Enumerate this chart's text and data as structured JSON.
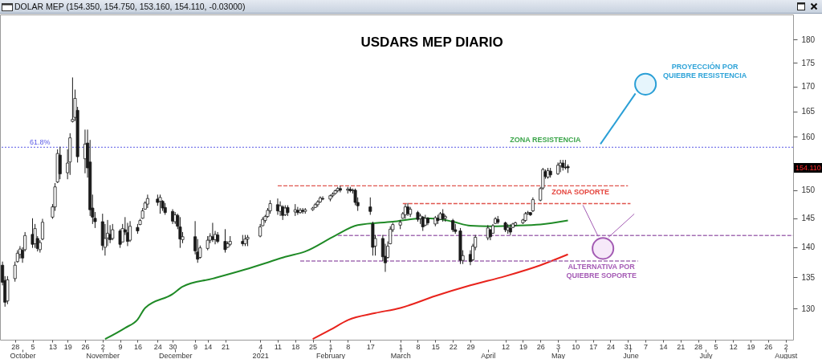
{
  "chart_data": {
    "type": "candlestick",
    "title": "USDARS MEP DIARIO",
    "color": "#1a1a1a",
    "x": [
      "2020-09-23",
      "2020-09-24",
      "2020-09-25",
      "2020-09-28",
      "2020-09-29",
      "2020-09-30",
      "2020-10-01",
      "2020-10-02",
      "2020-10-05",
      "2020-10-06",
      "2020-10-07",
      "2020-10-08",
      "2020-10-09",
      "2020-10-13",
      "2020-10-14",
      "2020-10-15",
      "2020-10-16",
      "2020-10-19",
      "2020-10-20",
      "2020-10-21",
      "2020-10-22",
      "2020-10-23",
      "2020-10-26",
      "2020-10-27",
      "2020-10-28",
      "2020-10-29",
      "2020-10-30",
      "2020-11-02",
      "2020-11-03",
      "2020-11-04",
      "2020-11-05",
      "2020-11-06",
      "2020-11-09",
      "2020-11-10",
      "2020-11-11",
      "2020-11-12",
      "2020-11-13",
      "2020-11-16",
      "2020-11-17",
      "2020-11-18",
      "2020-11-19",
      "2020-11-20",
      "2020-11-24",
      "2020-11-25",
      "2020-11-26",
      "2020-11-27",
      "2020-11-30",
      "2020-12-01",
      "2020-12-02",
      "2020-12-03",
      "2020-12-04",
      "2020-12-09",
      "2020-12-10",
      "2020-12-11",
      "2020-12-14",
      "2020-12-15",
      "2020-12-16",
      "2020-12-17",
      "2020-12-18",
      "2020-12-21",
      "2020-12-22",
      "2020-12-23",
      "2020-12-28",
      "2020-12-29",
      "2020-12-30",
      "2021-01-04",
      "2021-01-05",
      "2021-01-06",
      "2021-01-07",
      "2021-01-08",
      "2021-01-11",
      "2021-01-12",
      "2021-01-13",
      "2021-01-14",
      "2021-01-15",
      "2021-01-18",
      "2021-01-19",
      "2021-01-20",
      "2021-01-21",
      "2021-01-22",
      "2021-01-25",
      "2021-01-26",
      "2021-01-27",
      "2021-01-28",
      "2021-01-29",
      "2021-02-01",
      "2021-02-02",
      "2021-02-03",
      "2021-02-04",
      "2021-02-05",
      "2021-02-08",
      "2021-02-09",
      "2021-02-10",
      "2021-02-11",
      "2021-02-12",
      "2021-02-17",
      "2021-02-18",
      "2021-02-19",
      "2021-02-22",
      "2021-02-23",
      "2021-02-24",
      "2021-02-25",
      "2021-02-26",
      "2021-03-01",
      "2021-03-02",
      "2021-03-03",
      "2021-03-04",
      "2021-03-05",
      "2021-03-08",
      "2021-03-09",
      "2021-03-10",
      "2021-03-11",
      "2021-03-12",
      "2021-03-15",
      "2021-03-16",
      "2021-03-17",
      "2021-03-18",
      "2021-03-19",
      "2021-03-22",
      "2021-03-23",
      "2021-03-25",
      "2021-03-26",
      "2021-03-29",
      "2021-03-30",
      "2021-03-31",
      "2021-04-05",
      "2021-04-06",
      "2021-04-07",
      "2021-04-08",
      "2021-04-09",
      "2021-04-12",
      "2021-04-13",
      "2021-04-14",
      "2021-04-15",
      "2021-04-16",
      "2021-04-19",
      "2021-04-20",
      "2021-04-21",
      "2021-04-22",
      "2021-04-23",
      "2021-04-26",
      "2021-04-27",
      "2021-04-28",
      "2021-04-29",
      "2021-04-30",
      "2021-05-03",
      "2021-05-04",
      "2021-05-05",
      "2021-05-06",
      "2021-05-07"
    ],
    "ohlc": [
      [
        137.0,
        137.6,
        133.7,
        134.2
      ],
      [
        134.5,
        135.2,
        130.3,
        131.0
      ],
      [
        131.2,
        135.2,
        130.7,
        134.6
      ],
      [
        134.8,
        137.6,
        134.3,
        137.0
      ],
      [
        137.6,
        139.5,
        137.4,
        139.0
      ],
      [
        138.8,
        140.2,
        138.1,
        139.7
      ],
      [
        139.5,
        140.0,
        137.4,
        138.2
      ],
      [
        139.6,
        142.6,
        139.3,
        142.0
      ],
      [
        142.2,
        145.0,
        139.9,
        140.5
      ],
      [
        140.6,
        144.0,
        139.9,
        143.2
      ],
      [
        141.5,
        141.9,
        139.3,
        139.8
      ],
      [
        139.6,
        141.2,
        139.1,
        140.8
      ],
      [
        141.4,
        144.9,
        141.2,
        144.3
      ],
      [
        145.2,
        147.5,
        144.9,
        147.0
      ],
      [
        147.0,
        151.3,
        146.3,
        150.6
      ],
      [
        151.5,
        157.6,
        151.3,
        156.8
      ],
      [
        156.5,
        158.1,
        152.0,
        153.0
      ],
      [
        153.2,
        157.6,
        152.0,
        155.0
      ],
      [
        155.2,
        160.7,
        152.8,
        159.8
      ],
      [
        163.0,
        171.9,
        162.8,
        163.4
      ],
      [
        163.8,
        169.4,
        163.1,
        167.6
      ],
      [
        165.2,
        165.9,
        155.1,
        156.2
      ],
      [
        155.8,
        161.4,
        153.1,
        158.6
      ],
      [
        158.8,
        161.4,
        152.3,
        154.1
      ],
      [
        155.2,
        159.4,
        145.4,
        146.5
      ],
      [
        146.8,
        149.2,
        144.0,
        145.2
      ],
      [
        145.0,
        146.1,
        143.3,
        144.4
      ],
      [
        144.4,
        145.8,
        139.5,
        140.3
      ],
      [
        140.0,
        144.0,
        138.6,
        141.5
      ],
      [
        141.6,
        144.7,
        140.2,
        142.4
      ],
      [
        142.2,
        143.8,
        140.7,
        141.3
      ],
      [
        141.5,
        144.0,
        141.2,
        143.0
      ],
      [
        142.8,
        143.1,
        139.9,
        140.5
      ],
      [
        140.9,
        144.0,
        140.9,
        143.2
      ],
      [
        143.0,
        145.2,
        142.1,
        142.6
      ],
      [
        142.5,
        144.2,
        140.2,
        141.0
      ],
      [
        141.2,
        144.5,
        140.9,
        143.6
      ],
      [
        143.4,
        144.0,
        142.3,
        142.8
      ],
      [
        143.9,
        144.9,
        143.8,
        144.6
      ],
      [
        145.0,
        146.8,
        144.9,
        146.3
      ],
      [
        146.6,
        148.0,
        146.5,
        147.7
      ],
      [
        147.5,
        149.2,
        146.8,
        148.5
      ],
      [
        148.4,
        149.2,
        147.2,
        147.8
      ],
      [
        148.0,
        149.2,
        145.8,
        148.7
      ],
      [
        148.0,
        148.2,
        146.3,
        146.8
      ],
      [
        146.9,
        147.7,
        145.6,
        146.0
      ],
      [
        146.2,
        146.6,
        144.0,
        144.5
      ],
      [
        144.4,
        146.1,
        144.0,
        145.6
      ],
      [
        145.5,
        145.8,
        143.1,
        143.6
      ],
      [
        143.5,
        145.2,
        139.9,
        141.4
      ],
      [
        141.3,
        142.6,
        140.7,
        141.8
      ],
      [
        141.8,
        144.5,
        138.8,
        139.4
      ],
      [
        139.2,
        141.4,
        137.4,
        138.0
      ],
      [
        138.3,
        140.3,
        138.1,
        139.9
      ],
      [
        139.8,
        141.9,
        139.5,
        141.2
      ],
      [
        141.2,
        142.4,
        140.7,
        141.9
      ],
      [
        141.8,
        144.2,
        140.9,
        141.3
      ],
      [
        141.3,
        142.8,
        140.5,
        142.2
      ],
      [
        142.1,
        142.6,
        140.7,
        141.0
      ],
      [
        141.0,
        143.1,
        139.1,
        139.6
      ],
      [
        140.0,
        141.0,
        139.9,
        140.6
      ],
      [
        140.5,
        141.9,
        140.2,
        141.0
      ],
      [
        141.0,
        142.1,
        140.2,
        140.6
      ],
      [
        140.6,
        142.1,
        140.2,
        141.4
      ],
      [
        141.4,
        142.1,
        140.2,
        141.7
      ],
      [
        141.9,
        144.0,
        141.7,
        143.5
      ],
      [
        143.7,
        145.2,
        143.6,
        144.8
      ],
      [
        144.6,
        145.6,
        144.2,
        145.3
      ],
      [
        145.3,
        146.8,
        145.1,
        146.4
      ],
      [
        146.3,
        148.2,
        145.8,
        147.6
      ],
      [
        147.4,
        148.5,
        145.6,
        146.3
      ],
      [
        146.2,
        148.0,
        145.4,
        147.2
      ],
      [
        147.0,
        147.3,
        144.7,
        145.5
      ],
      [
        145.6,
        147.3,
        145.4,
        146.8
      ],
      [
        146.9,
        147.3,
        145.4,
        146.0
      ],
      [
        146.1,
        147.5,
        145.4,
        146.5
      ],
      [
        146.4,
        147.0,
        145.6,
        146.0
      ],
      [
        146.0,
        146.8,
        145.8,
        146.4
      ],
      [
        146.4,
        146.8,
        145.8,
        146.2
      ],
      [
        146.2,
        146.8,
        145.8,
        146.5
      ],
      [
        146.5,
        147.0,
        146.3,
        146.8
      ],
      [
        146.9,
        147.7,
        146.8,
        147.4
      ],
      [
        147.4,
        148.2,
        147.0,
        147.9
      ],
      [
        147.9,
        148.9,
        147.7,
        148.6
      ],
      [
        148.5,
        148.9,
        148.2,
        148.4
      ],
      [
        148.4,
        149.2,
        148.0,
        149.0
      ],
      [
        149.0,
        149.6,
        148.7,
        149.3
      ],
      [
        149.4,
        150.1,
        149.2,
        149.9
      ],
      [
        149.9,
        150.6,
        149.6,
        150.3
      ],
      [
        150.3,
        150.8,
        149.6,
        150.0
      ],
      [
        150.0,
        150.6,
        149.4,
        150.2
      ],
      [
        150.2,
        150.6,
        149.6,
        149.9
      ],
      [
        149.9,
        150.3,
        149.4,
        150.0
      ],
      [
        150.0,
        150.3,
        147.3,
        147.8
      ],
      [
        147.8,
        148.7,
        146.3,
        147.2
      ],
      [
        147.0,
        148.7,
        145.6,
        146.2
      ],
      [
        144.0,
        144.4,
        138.6,
        140.0
      ],
      [
        140.2,
        142.1,
        138.6,
        141.5
      ],
      [
        141.5,
        142.1,
        137.7,
        138.4
      ],
      [
        138.5,
        140.6,
        135.9,
        137.4
      ],
      [
        138.3,
        141.0,
        138.1,
        140.2
      ],
      [
        140.6,
        143.6,
        140.5,
        143.1
      ],
      [
        143.0,
        144.2,
        142.6,
        143.9
      ],
      [
        143.8,
        144.7,
        143.1,
        144.3
      ],
      [
        145.0,
        146.1,
        144.9,
        145.8
      ],
      [
        145.6,
        147.5,
        144.9,
        147.0
      ],
      [
        147.0,
        147.7,
        145.4,
        145.8
      ],
      [
        145.7,
        147.0,
        145.2,
        146.6
      ],
      [
        146.0,
        146.3,
        144.4,
        144.8
      ],
      [
        144.9,
        145.8,
        144.0,
        145.4
      ],
      [
        145.2,
        145.4,
        142.8,
        143.5
      ],
      [
        143.8,
        145.6,
        143.6,
        145.0
      ],
      [
        145.0,
        145.2,
        143.8,
        144.2
      ],
      [
        144.0,
        145.4,
        143.6,
        145.1
      ],
      [
        145.0,
        145.6,
        144.0,
        144.6
      ],
      [
        144.8,
        146.1,
        144.7,
        145.8
      ],
      [
        145.8,
        146.6,
        144.4,
        144.9
      ],
      [
        145.0,
        145.6,
        144.4,
        145.3
      ],
      [
        144.6,
        144.9,
        142.6,
        143.0
      ],
      [
        143.0,
        144.0,
        142.3,
        142.7
      ],
      [
        142.8,
        143.3,
        137.2,
        137.8
      ],
      [
        137.8,
        139.5,
        137.2,
        138.6
      ],
      [
        138.8,
        139.5,
        137.0,
        137.6
      ],
      [
        137.9,
        140.6,
        137.7,
        140.2
      ],
      [
        140.0,
        142.1,
        139.5,
        141.7
      ],
      [
        141.6,
        143.8,
        141.2,
        143.3
      ],
      [
        143.0,
        143.1,
        141.2,
        141.8
      ],
      [
        142.4,
        144.0,
        142.3,
        143.7
      ],
      [
        144.1,
        145.2,
        144.0,
        144.9
      ],
      [
        144.8,
        145.4,
        144.0,
        144.3
      ],
      [
        144.2,
        144.4,
        142.6,
        143.0
      ],
      [
        142.9,
        144.0,
        142.3,
        143.4
      ],
      [
        143.3,
        144.0,
        142.1,
        142.6
      ],
      [
        143.4,
        144.2,
        143.3,
        144.0
      ],
      [
        143.8,
        144.4,
        143.6,
        144.2
      ],
      [
        144.2,
        144.9,
        144.0,
        144.7
      ],
      [
        144.6,
        146.1,
        144.4,
        145.8
      ],
      [
        145.8,
        146.3,
        145.6,
        146.0
      ],
      [
        146.0,
        146.1,
        145.4,
        145.6
      ],
      [
        146.3,
        148.7,
        146.1,
        148.3
      ],
      [
        148.2,
        150.6,
        148.0,
        150.3
      ],
      [
        150.4,
        154.1,
        150.1,
        153.8
      ],
      [
        153.4,
        153.8,
        152.1,
        152.5
      ],
      [
        152.4,
        154.1,
        152.1,
        153.6
      ],
      [
        153.5,
        154.1,
        152.3,
        152.8
      ],
      [
        153.0,
        155.1,
        152.8,
        154.6
      ],
      [
        154.5,
        155.6,
        153.3,
        155.0
      ],
      [
        155.0,
        155.6,
        153.6,
        154.2
      ],
      [
        154.2,
        155.6,
        153.8,
        154.14
      ],
      [
        154.35,
        154.75,
        153.16,
        154.11
      ]
    ],
    "series": [
      {
        "type": "line",
        "color": "#1f8a26",
        "x": [
          "2020-11-03",
          "2020-11-11",
          "2020-11-16",
          "2020-11-19",
          "2020-11-30",
          "2020-12-04",
          "2020-12-16",
          "2020-12-29",
          "2021-01-08",
          "2021-01-14",
          "2021-01-22",
          "2021-02-03",
          "2021-02-12",
          "2021-02-26",
          "2021-03-10",
          "2021-03-16",
          "2021-03-22",
          "2021-03-29",
          "2021-04-05",
          "2021-04-15",
          "2021-04-26",
          "2021-05-07"
        ],
        "values": [
          125.3,
          127.0,
          128.3,
          130.1,
          132.3,
          133.5,
          134.8,
          136.3,
          137.6,
          138.4,
          139.3,
          142.0,
          143.8,
          144.4,
          145.0,
          144.9,
          144.4,
          143.7,
          143.6,
          143.7,
          143.9,
          144.6
        ]
      },
      {
        "type": "line",
        "color": "#e8231c",
        "x": [
          "2021-01-25",
          "2021-02-01",
          "2021-02-08",
          "2021-02-19",
          "2021-03-01",
          "2021-03-15",
          "2021-03-29",
          "2021-04-12",
          "2021-04-26",
          "2021-05-07"
        ],
        "values": [
          125.3,
          126.7,
          128.2,
          129.3,
          130.1,
          132.0,
          133.7,
          135.2,
          137.0,
          138.8
        ]
      },
      {
        "type": "line",
        "color": "#e0554e",
        "line_style": "dashed",
        "x": [
          "2021-01-11",
          "2021-05-31"
        ],
        "values": [
          150.8,
          150.8
        ]
      },
      {
        "type": "line",
        "color": "#e0554e",
        "line_style": "dashed",
        "x": [
          "2021-03-02",
          "2021-06-01"
        ],
        "values": [
          147.6,
          147.6
        ]
      },
      {
        "type": "line",
        "color": "#a46fb4",
        "line_style": "dashed",
        "x": [
          "2021-02-04",
          "2021-08-05"
        ],
        "values": [
          142.0,
          142.0
        ]
      },
      {
        "type": "line",
        "color": "#a46fb4",
        "line_style": "dashed",
        "x": [
          "2021-01-20",
          "2021-06-04"
        ],
        "values": [
          137.7,
          137.7
        ]
      },
      {
        "type": "line",
        "color": "#2a9fd6",
        "x": [
          "2021-05-20",
          "2021-06-03"
        ],
        "values": [
          158.6,
          168.6
        ]
      }
    ],
    "xlim": [
      "2020-09-22",
      "2021-08-05"
    ],
    "xticks": [
      {
        "value": "2020-09-28",
        "label": "28"
      },
      {
        "value": "2020-10-05",
        "label": "5"
      },
      {
        "value": "2020-10-13",
        "label": "13"
      },
      {
        "value": "2020-10-19",
        "label": "19"
      },
      {
        "value": "2020-10-26",
        "label": "26"
      },
      {
        "value": "2020-11-02",
        "label": "2"
      },
      {
        "value": "2020-11-09",
        "label": "9"
      },
      {
        "value": "2020-11-16",
        "label": "16"
      },
      {
        "value": "2020-11-24",
        "label": "24"
      },
      {
        "value": "2020-11-30",
        "label": "30"
      },
      {
        "value": "2020-12-09",
        "label": "9"
      },
      {
        "value": "2020-12-14",
        "label": "14"
      },
      {
        "value": "2020-12-21",
        "label": "21"
      },
      {
        "value": "2021-01-04",
        "label": "4"
      },
      {
        "value": "2021-01-11",
        "label": "11"
      },
      {
        "value": "2021-01-18",
        "label": "18"
      },
      {
        "value": "2021-01-25",
        "label": "25"
      },
      {
        "value": "2021-02-01",
        "label": "1"
      },
      {
        "value": "2021-02-08",
        "label": "8"
      },
      {
        "value": "2021-02-17",
        "label": "17"
      },
      {
        "value": "2021-03-01",
        "label": "1"
      },
      {
        "value": "2021-03-08",
        "label": "8"
      },
      {
        "value": "2021-03-15",
        "label": "15"
      },
      {
        "value": "2021-03-22",
        "label": "22"
      },
      {
        "value": "2021-03-29",
        "label": "29"
      },
      {
        "value": "2021-04-12",
        "label": "12"
      },
      {
        "value": "2021-04-19",
        "label": "19"
      },
      {
        "value": "2021-04-26",
        "label": "26"
      },
      {
        "value": "2021-05-03",
        "label": "3"
      },
      {
        "value": "2021-05-10",
        "label": "10"
      },
      {
        "value": "2021-05-17",
        "label": "17"
      },
      {
        "value": "2021-05-24",
        "label": "24"
      },
      {
        "value": "2021-05-31",
        "label": "31"
      },
      {
        "value": "2021-06-07",
        "label": "7"
      },
      {
        "value": "2021-06-14",
        "label": "14"
      },
      {
        "value": "2021-06-21",
        "label": "21"
      },
      {
        "value": "2021-06-28",
        "label": "28"
      },
      {
        "value": "2021-07-05",
        "label": "5"
      },
      {
        "value": "2021-07-12",
        "label": "12"
      },
      {
        "value": "2021-07-19",
        "label": "19"
      },
      {
        "value": "2021-07-26",
        "label": "26"
      },
      {
        "value": "2021-08-02",
        "label": "2"
      }
    ],
    "x2lim": [
      "2020-09-22",
      "2021-08-05"
    ],
    "x2ticks": [
      {
        "value": "2020-10-01",
        "label": "October"
      },
      {
        "value": "2020-11-02",
        "label": "November"
      },
      {
        "value": "2020-12-01",
        "label": "December"
      },
      {
        "value": "2021-01-04",
        "label": "2021"
      },
      {
        "value": "2021-02-01",
        "label": "February"
      },
      {
        "value": "2021-03-01",
        "label": "March"
      },
      {
        "value": "2021-04-05",
        "label": "April"
      },
      {
        "value": "2021-05-03",
        "label": "May"
      },
      {
        "value": "2021-06-01",
        "label": "June"
      },
      {
        "value": "2021-07-01",
        "label": "July"
      },
      {
        "value": "2021-08-02",
        "label": "August"
      }
    ],
    "ylim": [
      125.2,
      185.5
    ],
    "yticks": [
      130,
      135,
      140,
      145,
      150,
      {
        "value": 155,
        "label": null
      },
      160,
      165,
      170,
      175,
      180
    ],
    "log": true,
    "ref_lines": [
      {
        "axis": "y",
        "value": 158,
        "color": "#5a5ae6",
        "line_style": "dotted"
      }
    ],
    "annotations": [
      "DOLAR MEP (154.350, 154.750, 153.160, 154.110, -0.03000)",
      {
        "text": "ZONA RESISTENCIA",
        "x": "2021-04-28",
        "y": 158
      },
      {
        "text": "ZONA SOPORTE",
        "x": "2021-05-12",
        "y": 150.8
      },
      {
        "text": "PROYECCIÓN POR\nQUIEBRE RESISTENCIA",
        "x": "2021-06-07",
        "y": 170.5
      },
      {
        "text": "ALTERNATIVA POR\nQUIEBRE SOPORTE",
        "x": "2021-05-21",
        "y": 139.8
      },
      {
        "text": "154.110",
        "y": 154.11
      },
      {
        "text": "61.8%",
        "x": "2020-10-08",
        "y": 158
      }
    ]
  }
}
